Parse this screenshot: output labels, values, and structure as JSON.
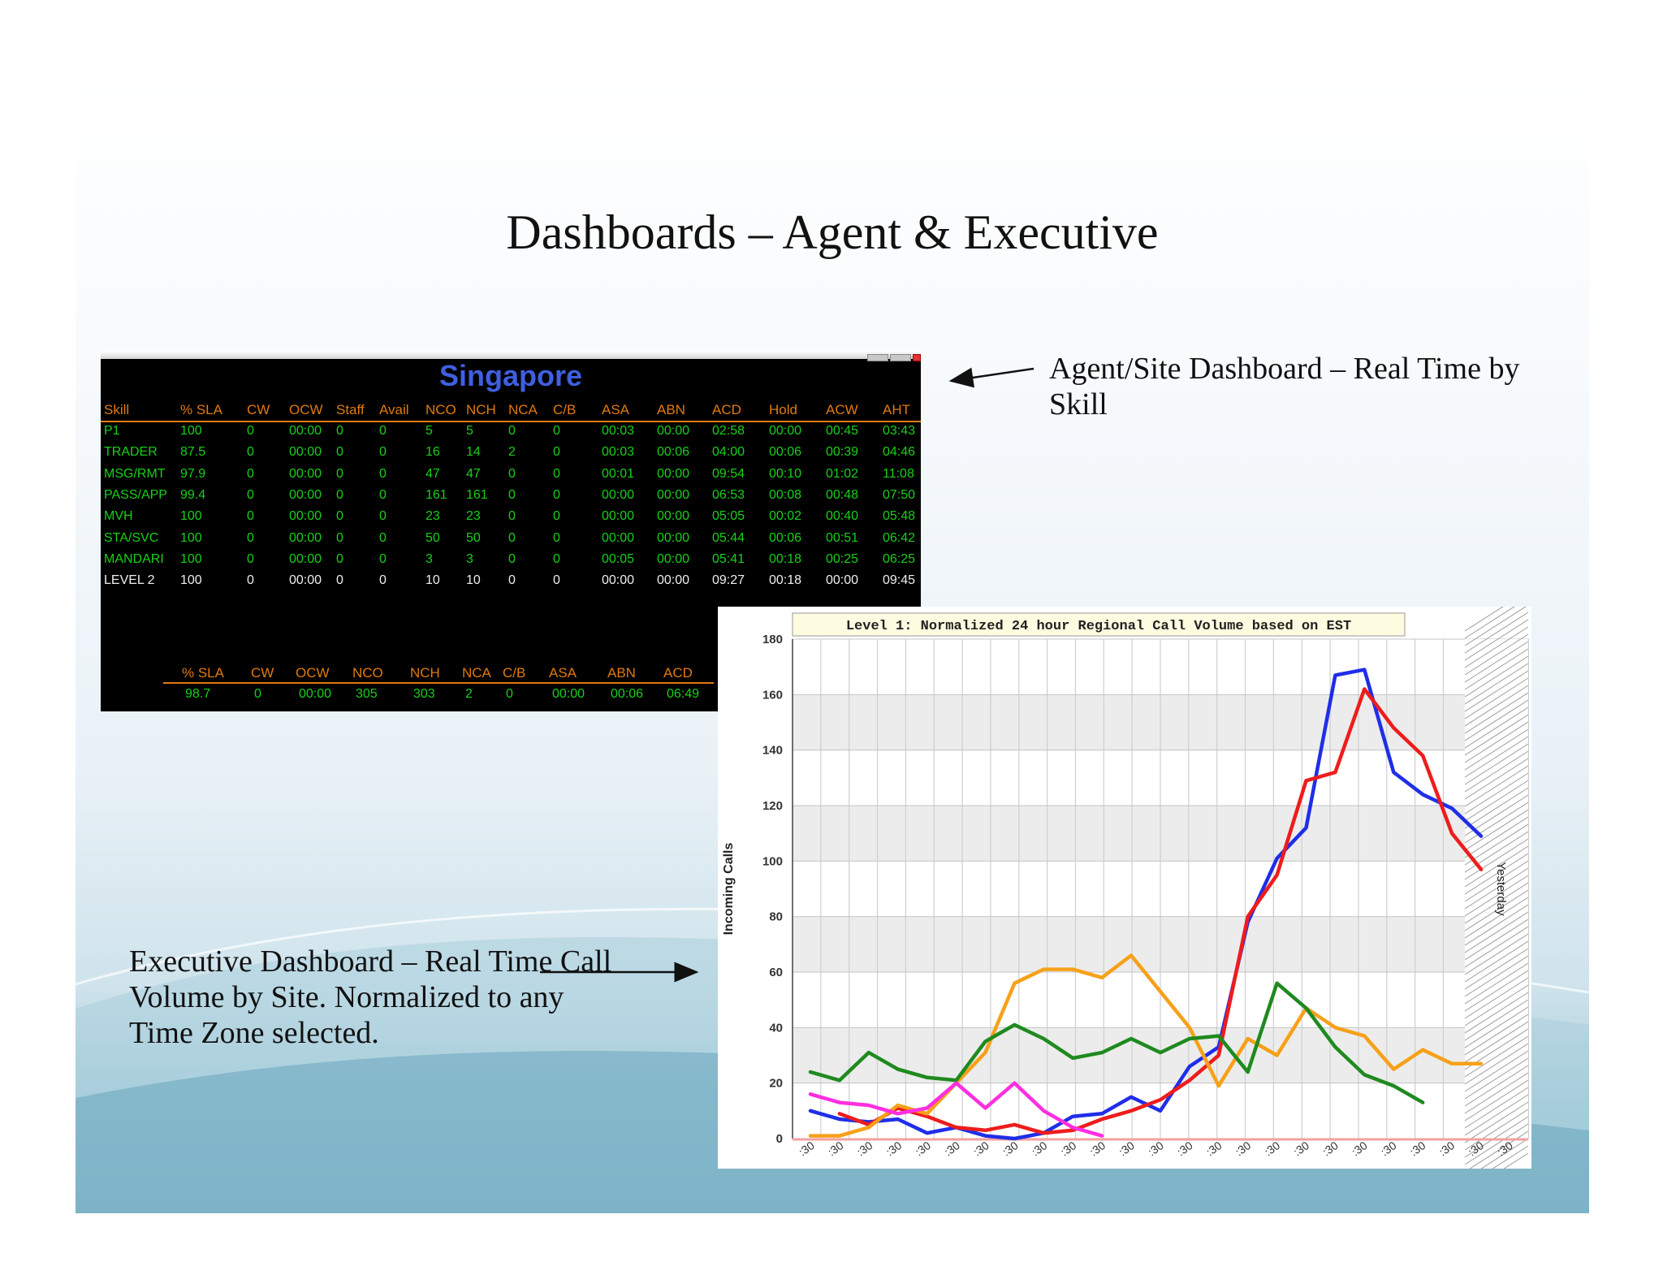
{
  "slide": {
    "title": "Dashboards – Agent & Executive",
    "note_agent": "Agent/Site Dashboard – Real Time by Skill",
    "note_exec": "Executive Dashboard – Real Time Call Volume by Site.  Normalized to any Time Zone selected."
  },
  "agent_dashboard": {
    "site": "Singapore",
    "columns": [
      "Skill",
      "% SLA",
      "CW",
      "OCW",
      "Staff",
      "Avail",
      "NCO",
      "NCH",
      "NCA",
      "C/B",
      "ASA",
      "ABN",
      "ACD",
      "Hold",
      "ACW",
      "AHT"
    ],
    "rows": [
      [
        "P1",
        "100",
        "0",
        "00:00",
        "0",
        "0",
        "5",
        "5",
        "0",
        "0",
        "00:03",
        "00:00",
        "02:58",
        "00:00",
        "00:45",
        "03:43"
      ],
      [
        "TRADER",
        "87.5",
        "0",
        "00:00",
        "0",
        "0",
        "16",
        "14",
        "2",
        "0",
        "00:03",
        "00:06",
        "04:00",
        "00:06",
        "00:39",
        "04:46"
      ],
      [
        "MSG/RMT",
        "97.9",
        "0",
        "00:00",
        "0",
        "0",
        "47",
        "47",
        "0",
        "0",
        "00:01",
        "00:00",
        "09:54",
        "00:10",
        "01:02",
        "11:08"
      ],
      [
        "PASS/APP",
        "99.4",
        "0",
        "00:00",
        "0",
        "0",
        "161",
        "161",
        "0",
        "0",
        "00:00",
        "00:00",
        "06:53",
        "00:08",
        "00:48",
        "07:50"
      ],
      [
        "MVH",
        "100",
        "0",
        "00:00",
        "0",
        "0",
        "23",
        "23",
        "0",
        "0",
        "00:00",
        "00:00",
        "05:05",
        "00:02",
        "00:40",
        "05:48"
      ],
      [
        "STA/SVC",
        "100",
        "0",
        "00:00",
        "0",
        "0",
        "50",
        "50",
        "0",
        "0",
        "00:00",
        "00:00",
        "05:44",
        "00:06",
        "00:51",
        "06:42"
      ],
      [
        "MANDARI",
        "100",
        "0",
        "00:00",
        "0",
        "0",
        "3",
        "3",
        "0",
        "0",
        "00:05",
        "00:00",
        "05:41",
        "00:18",
        "00:25",
        "06:25"
      ],
      [
        "LEVEL 2",
        "100",
        "0",
        "00:00",
        "0",
        "0",
        "10",
        "10",
        "0",
        "0",
        "00:00",
        "00:00",
        "09:27",
        "00:18",
        "00:00",
        "09:45"
      ]
    ],
    "summary_columns": [
      "% SLA",
      "CW",
      "OCW",
      "NCO",
      "NCH",
      "NCA",
      "C/B",
      "ASA",
      "ABN",
      "ACD"
    ],
    "summary_values": [
      "98.7",
      "0",
      "00:00",
      "305",
      "303",
      "2",
      "0",
      "00:00",
      "00:06",
      "06:49"
    ]
  },
  "chart_data": {
    "type": "line",
    "title": "Level 1: Normalized 24 hour Regional Call Volume based on EST",
    "ylabel": "Incoming Calls",
    "xlabel": "",
    "ylim": [
      0,
      180
    ],
    "yticks": [
      0,
      20,
      40,
      60,
      80,
      100,
      120,
      140,
      160,
      180
    ],
    "x_tick_label": ":30",
    "x_tick_count": 25,
    "shaded_label": "Yesterday",
    "grid": true,
    "series": [
      {
        "color": "#1f2ee8",
        "values": [
          10,
          7,
          6,
          7,
          2,
          4,
          1,
          0,
          2,
          8,
          9,
          15,
          10,
          26,
          33,
          78,
          101,
          112,
          167,
          169,
          132,
          124,
          119,
          109
        ]
      },
      {
        "color": "#ee1c1c",
        "values": [
          null,
          9,
          5,
          11,
          8,
          4,
          3,
          5,
          2,
          3,
          7,
          10,
          14,
          21,
          30,
          80,
          95,
          129,
          132,
          162,
          148,
          138,
          110,
          97
        ]
      },
      {
        "color": "#f6a11a",
        "values": [
          1,
          1,
          4,
          12,
          9,
          20,
          31,
          56,
          61,
          61,
          58,
          66,
          53,
          40,
          19,
          36,
          30,
          47,
          40,
          37,
          25,
          32,
          27,
          27
        ]
      },
      {
        "color": "#1f8a1f",
        "values": [
          24,
          21,
          31,
          25,
          22,
          21,
          35,
          41,
          36,
          29,
          31,
          36,
          31,
          36,
          37,
          24,
          56,
          47,
          33,
          23,
          19,
          13,
          null,
          null
        ]
      },
      {
        "color": "#ff2ee0",
        "values": [
          16,
          13,
          12,
          9,
          11,
          20,
          11,
          20,
          10,
          4,
          1,
          null,
          null,
          null,
          null,
          null,
          null,
          null,
          null,
          null,
          null,
          null,
          null,
          null
        ]
      }
    ]
  }
}
